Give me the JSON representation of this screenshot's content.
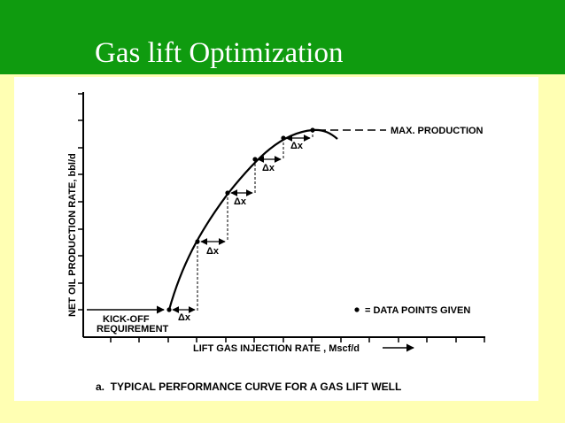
{
  "slide": {
    "title": "Gas lift Optimization",
    "colors": {
      "banner": "#0f9b0f",
      "background": "#ffffb3",
      "panel": "#ffffff"
    }
  },
  "diagram": {
    "y_axis_label": "NET OIL PRODUCTION RATE, bbl/d",
    "x_axis_label": "LIFT GAS INJECTION RATE , Mscf/d",
    "max_production_label": "MAX. PRODUCTION",
    "kickoff_label_line1": "KICK-OFF",
    "kickoff_label_line2": "REQUIREMENT",
    "legend_label": "= DATA POINTS GIVEN",
    "step_label": "Δx",
    "caption": "a.  TYPICAL PERFORMANCE CURVE FOR A GAS LIFT WELL",
    "data_points_count": 6
  }
}
